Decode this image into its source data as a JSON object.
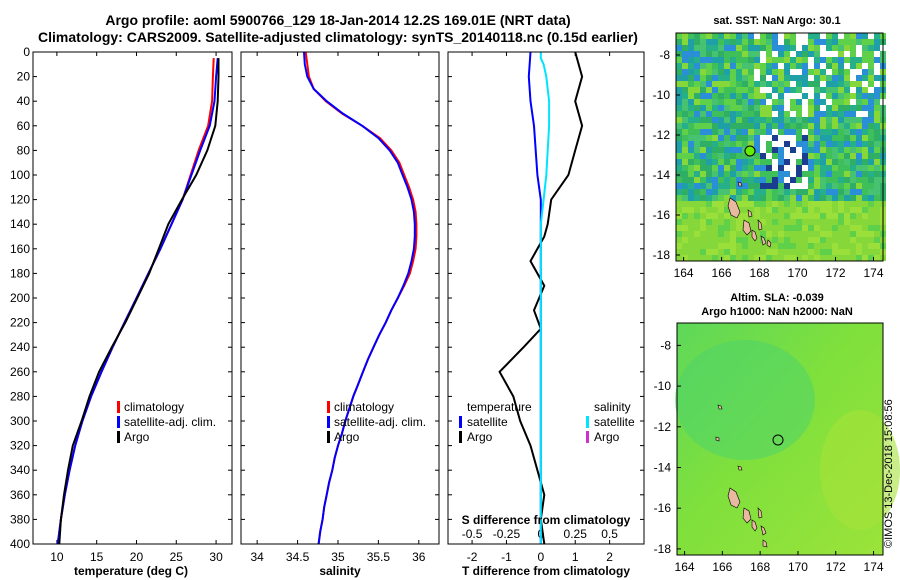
{
  "header": {
    "line1": "Argo profile: aoml 5900766_129 18-Jan-2014 12.2S 169.01E (NRT data)",
    "line2": "Climatology: CARS2009. Satellite-adjusted climatology: synTS_20140118.nc (0.15d earlier)"
  },
  "colors": {
    "climatology": "#ff0000",
    "satellite": "#0000ff",
    "argo": "#000000",
    "sat_salinity": "#00e5ff",
    "argo_salinity": "#cc33cc"
  },
  "depth_ticks": [
    "0",
    "20",
    "40",
    "60",
    "80",
    "100",
    "120",
    "140",
    "160",
    "180",
    "200",
    "220",
    "240",
    "260",
    "280",
    "300",
    "320",
    "340",
    "360",
    "380",
    "400"
  ],
  "chart_data": [
    {
      "type": "line",
      "name": "temperature",
      "xlabel": "temperature (deg C)",
      "ylabel": "depth",
      "xlim": [
        7,
        32
      ],
      "ylim": [
        400,
        0
      ],
      "xticks": [
        10,
        15,
        20,
        25,
        30
      ],
      "x_tick_labels": [
        "10",
        "15",
        "20",
        "25",
        "30"
      ],
      "legend": [
        "climatology",
        "satellite-adj. clim.",
        "Argo"
      ],
      "series": [
        {
          "name": "climatology",
          "color": "#ff0000",
          "points": [
            [
              29.7,
              5
            ],
            [
              29.6,
              20
            ],
            [
              29.5,
              40
            ],
            [
              29.0,
              60
            ],
            [
              27.8,
              80
            ],
            [
              26.8,
              100
            ],
            [
              25.8,
              120
            ],
            [
              24.4,
              140
            ],
            [
              23.0,
              160
            ],
            [
              21.5,
              180
            ],
            [
              20.0,
              200
            ],
            [
              18.5,
              220
            ],
            [
              17.0,
              240
            ],
            [
              15.6,
              260
            ],
            [
              14.3,
              280
            ],
            [
              13.2,
              300
            ],
            [
              12.3,
              320
            ],
            [
              11.6,
              340
            ],
            [
              11.0,
              360
            ],
            [
              10.5,
              380
            ],
            [
              10.1,
              400
            ]
          ]
        },
        {
          "name": "satellite-adj. clim.",
          "color": "#0000ff",
          "points": [
            [
              30.2,
              5
            ],
            [
              30.0,
              20
            ],
            [
              29.8,
              40
            ],
            [
              29.2,
              60
            ],
            [
              28.0,
              80
            ],
            [
              26.9,
              100
            ],
            [
              25.8,
              120
            ],
            [
              24.4,
              140
            ],
            [
              23.0,
              160
            ],
            [
              21.5,
              180
            ],
            [
              20.0,
              200
            ],
            [
              18.5,
              220
            ],
            [
              17.0,
              240
            ],
            [
              15.6,
              260
            ],
            [
              14.3,
              280
            ],
            [
              13.2,
              300
            ],
            [
              12.3,
              320
            ],
            [
              11.6,
              340
            ],
            [
              11.0,
              360
            ],
            [
              10.5,
              380
            ],
            [
              10.1,
              400
            ]
          ]
        },
        {
          "name": "Argo",
          "color": "#000000",
          "points": [
            [
              30.3,
              5
            ],
            [
              30.3,
              20
            ],
            [
              30.2,
              40
            ],
            [
              29.9,
              60
            ],
            [
              28.9,
              80
            ],
            [
              27.5,
              100
            ],
            [
              25.7,
              120
            ],
            [
              24.0,
              140
            ],
            [
              22.8,
              160
            ],
            [
              21.6,
              180
            ],
            [
              20.1,
              200
            ],
            [
              18.6,
              220
            ],
            [
              16.9,
              240
            ],
            [
              15.3,
              260
            ],
            [
              14.1,
              280
            ],
            [
              13.1,
              300
            ],
            [
              12.0,
              320
            ],
            [
              11.4,
              340
            ],
            [
              10.9,
              360
            ],
            [
              10.5,
              380
            ],
            [
              10.3,
              400
            ]
          ]
        }
      ]
    },
    {
      "type": "line",
      "name": "salinity",
      "xlabel": "salinity",
      "ylabel": "depth",
      "xlim": [
        33.8,
        36.25
      ],
      "ylim": [
        400,
        0
      ],
      "xticks": [
        34,
        34.5,
        35,
        35.5,
        36
      ],
      "x_tick_labels": [
        "34",
        "34.5",
        "35",
        "35.5",
        "36"
      ],
      "legend": [
        "climatology",
        "satellite-adj. clim.",
        "Argo"
      ],
      "series": [
        {
          "name": "climatology",
          "color": "#ff0000",
          "points": [
            [
              34.6,
              0
            ],
            [
              34.62,
              10
            ],
            [
              34.64,
              20
            ],
            [
              34.7,
              30
            ],
            [
              34.85,
              40
            ],
            [
              35.05,
              50
            ],
            [
              35.3,
              60
            ],
            [
              35.52,
              70
            ],
            [
              35.66,
              80
            ],
            [
              35.76,
              90
            ],
            [
              35.82,
              100
            ],
            [
              35.88,
              110
            ],
            [
              35.93,
              120
            ],
            [
              35.96,
              130
            ],
            [
              35.97,
              140
            ],
            [
              35.97,
              150
            ],
            [
              35.96,
              160
            ],
            [
              35.93,
              170
            ],
            [
              35.89,
              180
            ],
            [
              35.82,
              190
            ],
            [
              35.74,
              200
            ],
            [
              35.66,
              210
            ],
            [
              35.59,
              220
            ],
            [
              35.51,
              230
            ],
            [
              35.44,
              240
            ],
            [
              35.37,
              250
            ],
            [
              35.31,
              260
            ],
            [
              35.25,
              270
            ],
            [
              35.19,
              280
            ],
            [
              35.14,
              290
            ],
            [
              35.09,
              300
            ],
            [
              35.05,
              310
            ],
            [
              35.0,
              320
            ],
            [
              34.96,
              330
            ],
            [
              34.93,
              340
            ],
            [
              34.89,
              350
            ],
            [
              34.86,
              360
            ],
            [
              34.83,
              370
            ],
            [
              34.81,
              380
            ],
            [
              34.78,
              390
            ],
            [
              34.76,
              400
            ]
          ]
        },
        {
          "name": "satellite-adj. clim.",
          "color": "#0000ff",
          "points": [
            [
              34.58,
              0
            ],
            [
              34.59,
              10
            ],
            [
              34.62,
              20
            ],
            [
              34.7,
              30
            ],
            [
              34.86,
              40
            ],
            [
              35.06,
              50
            ],
            [
              35.3,
              60
            ],
            [
              35.5,
              70
            ],
            [
              35.64,
              80
            ],
            [
              35.74,
              90
            ],
            [
              35.8,
              100
            ],
            [
              35.86,
              110
            ],
            [
              35.91,
              120
            ],
            [
              35.94,
              130
            ],
            [
              35.95,
              140
            ],
            [
              35.95,
              150
            ],
            [
              35.94,
              160
            ],
            [
              35.91,
              170
            ],
            [
              35.87,
              180
            ],
            [
              35.81,
              190
            ],
            [
              35.74,
              200
            ],
            [
              35.66,
              210
            ],
            [
              35.59,
              220
            ],
            [
              35.51,
              230
            ],
            [
              35.44,
              240
            ],
            [
              35.37,
              250
            ],
            [
              35.31,
              260
            ],
            [
              35.25,
              270
            ],
            [
              35.19,
              280
            ],
            [
              35.14,
              290
            ],
            [
              35.09,
              300
            ],
            [
              35.05,
              310
            ],
            [
              35.0,
              320
            ],
            [
              34.96,
              330
            ],
            [
              34.93,
              340
            ],
            [
              34.89,
              350
            ],
            [
              34.86,
              360
            ],
            [
              34.83,
              370
            ],
            [
              34.81,
              380
            ],
            [
              34.78,
              390
            ],
            [
              34.76,
              400
            ]
          ]
        }
      ]
    },
    {
      "type": "line",
      "name": "differences",
      "xlabel": "T difference from climatology",
      "xlabel_top": "S difference from climatology",
      "ylabel": "depth",
      "xlim": [
        -2.7,
        3.0
      ],
      "ylim": [
        400,
        0
      ],
      "xticks": [
        -2,
        -1,
        0,
        1,
        2
      ],
      "x_tick_labels": [
        "-2",
        "-1",
        "0",
        "1",
        "2"
      ],
      "s_xlim": [
        -0.675,
        0.75
      ],
      "s_xticks": [
        -0.5,
        -0.25,
        0,
        0.25,
        0.5
      ],
      "s_tick_labels": [
        "-0.5",
        "-0.25",
        "0",
        "0.25",
        "0.5"
      ],
      "legend_temperature_title": "temperature",
      "legend_salinity_title": "salinity",
      "legend_temperature": [
        "satellite",
        "Argo"
      ],
      "legend_salinity": [
        "satellite",
        "Argo"
      ],
      "series": [
        {
          "name": "temperature satellite",
          "color": "#0000ff",
          "scale": "T",
          "points": [
            [
              -0.3,
              0
            ],
            [
              -0.35,
              20
            ],
            [
              -0.3,
              40
            ],
            [
              -0.2,
              60
            ],
            [
              -0.15,
              80
            ],
            [
              -0.1,
              100
            ],
            [
              0,
              120
            ],
            [
              0,
              140
            ],
            [
              0,
              160
            ],
            [
              0,
              200
            ],
            [
              0,
              240
            ],
            [
              0,
              300
            ],
            [
              0,
              350
            ],
            [
              0,
              400
            ]
          ]
        },
        {
          "name": "temperature Argo",
          "color": "#000000",
          "scale": "T",
          "points": [
            [
              1.0,
              0
            ],
            [
              1.2,
              20
            ],
            [
              1.0,
              40
            ],
            [
              1.2,
              60
            ],
            [
              1.0,
              80
            ],
            [
              0.8,
              100
            ],
            [
              0.3,
              120
            ],
            [
              0.2,
              140
            ],
            [
              0.1,
              150
            ],
            [
              -0.3,
              170
            ],
            [
              0.1,
              190
            ],
            [
              -0.2,
              210
            ],
            [
              0.0,
              225
            ],
            [
              -0.5,
              240
            ],
            [
              -1.2,
              260
            ],
            [
              -0.8,
              280
            ],
            [
              -0.6,
              300
            ],
            [
              -0.3,
              320
            ],
            [
              -0.1,
              340
            ],
            [
              0.1,
              360
            ],
            [
              0.0,
              380
            ],
            [
              0.1,
              400
            ]
          ]
        },
        {
          "name": "salinity satellite",
          "color": "#00e5ff",
          "scale": "S",
          "points": [
            [
              0.0,
              0
            ],
            [
              0.0,
              5
            ],
            [
              0.02,
              10
            ],
            [
              0.04,
              20
            ],
            [
              0.06,
              40
            ],
            [
              0.06,
              60
            ],
            [
              0.05,
              80
            ],
            [
              0.04,
              100
            ],
            [
              0.02,
              120
            ],
            [
              0.0,
              140
            ],
            [
              0.0,
              170
            ],
            [
              0.0,
              200
            ],
            [
              0.0,
              260
            ],
            [
              0.0,
              320
            ],
            [
              0.0,
              400
            ]
          ]
        }
      ]
    }
  ],
  "map_sst": {
    "title": "sat. SST: NaN Argo: 30.1",
    "yticks": [
      "-8",
      "-10",
      "-12",
      "-14",
      "-16",
      "-18"
    ],
    "xticks": [
      "164",
      "166",
      "168",
      "170",
      "172",
      "174"
    ]
  },
  "map_sla": {
    "title_line1": "Altim. SLA: -0.039",
    "title_line2": "Argo h1000: NaN h2000: NaN",
    "yticks": [
      "-8",
      "-10",
      "-12",
      "-14",
      "-16",
      "-18"
    ],
    "xticks": [
      "164",
      "166",
      "168",
      "170",
      "172",
      "174"
    ]
  },
  "footer": {
    "credit": "©IMOS 13-Dec-2018 15:08:56"
  }
}
